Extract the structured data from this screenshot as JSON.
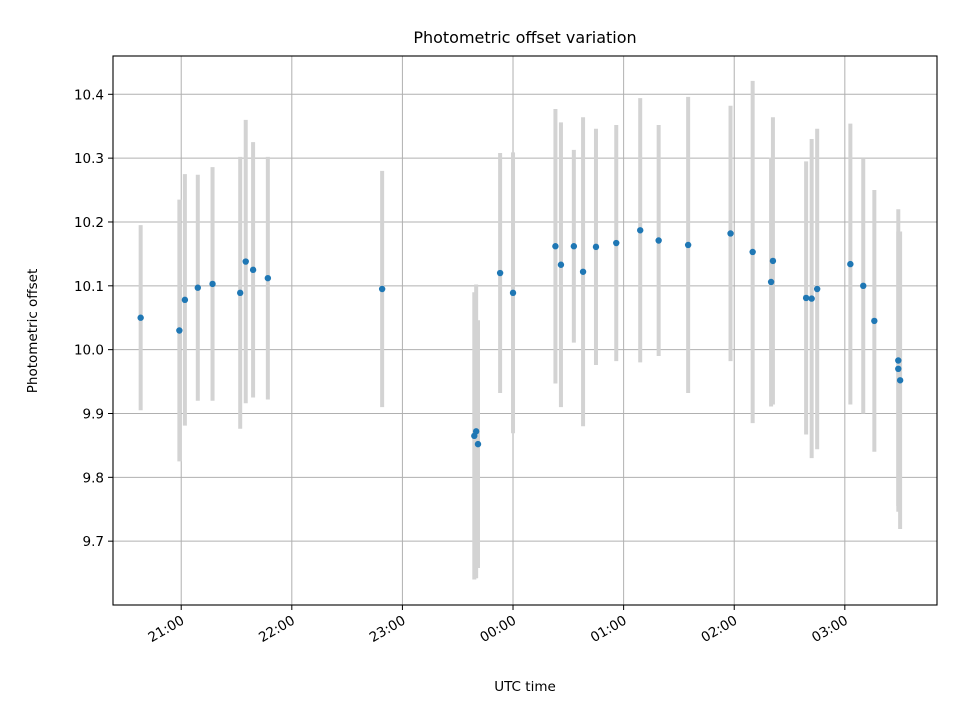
{
  "chart_data": {
    "type": "scatter",
    "title": "Photometric offset variation",
    "xlabel": "UTC time",
    "ylabel": "Photometric offset",
    "x_tick_labels": [
      "21:00",
      "22:00",
      "23:00",
      "00:00",
      "01:00",
      "02:00",
      "03:00"
    ],
    "x_tick_times": [
      "21:00",
      "22:00",
      "23:00",
      "00:00",
      "01:00",
      "02:00",
      "03:00"
    ],
    "y_tick_labels": [
      "9.7",
      "9.8",
      "9.9",
      "10.0",
      "10.1",
      "10.2",
      "10.3",
      "10.4"
    ],
    "y_ticks": [
      9.7,
      9.8,
      9.9,
      10.0,
      10.1,
      10.2,
      10.3,
      10.4
    ],
    "xlim": [
      "20:23",
      "03:50"
    ],
    "ylim": [
      9.6,
      10.46
    ],
    "grid": true,
    "legend": "none",
    "point_color": "#1f77b4",
    "errorbar_color": "#d3d3d3",
    "points": [
      {
        "t": "20:38",
        "y": 10.05,
        "err": 0.145
      },
      {
        "t": "20:59",
        "y": 10.03,
        "err": 0.205
      },
      {
        "t": "21:02",
        "y": 10.078,
        "err": 0.197
      },
      {
        "t": "21:09",
        "y": 10.097,
        "err": 0.177
      },
      {
        "t": "21:17",
        "y": 10.103,
        "err": 0.183
      },
      {
        "t": "21:32",
        "y": 10.089,
        "err": 0.213
      },
      {
        "t": "21:35",
        "y": 10.138,
        "err": 0.222
      },
      {
        "t": "21:39",
        "y": 10.125,
        "err": 0.2
      },
      {
        "t": "21:47",
        "y": 10.112,
        "err": 0.19
      },
      {
        "t": "22:49",
        "y": 10.095,
        "err": 0.185
      },
      {
        "t": "23:39",
        "y": 9.865,
        "err": 0.225
      },
      {
        "t": "23:40",
        "y": 9.872,
        "err": 0.23
      },
      {
        "t": "23:41",
        "y": 9.852,
        "err": 0.194
      },
      {
        "t": "23:53",
        "y": 10.12,
        "err": 0.188
      },
      {
        "t": "00:00",
        "y": 10.089,
        "err": 0.22
      },
      {
        "t": "00:23",
        "y": 10.162,
        "err": 0.215
      },
      {
        "t": "00:26",
        "y": 10.133,
        "err": 0.223
      },
      {
        "t": "00:33",
        "y": 10.162,
        "err": 0.151
      },
      {
        "t": "00:38",
        "y": 10.122,
        "err": 0.242
      },
      {
        "t": "00:45",
        "y": 10.161,
        "err": 0.185
      },
      {
        "t": "00:56",
        "y": 10.167,
        "err": 0.185
      },
      {
        "t": "01:09",
        "y": 10.187,
        "err": 0.207
      },
      {
        "t": "01:19",
        "y": 10.171,
        "err": 0.181
      },
      {
        "t": "01:35",
        "y": 10.164,
        "err": 0.232
      },
      {
        "t": "01:58",
        "y": 10.182,
        "err": 0.2
      },
      {
        "t": "02:10",
        "y": 10.153,
        "err": 0.268
      },
      {
        "t": "02:20",
        "y": 10.106,
        "err": 0.195
      },
      {
        "t": "02:21",
        "y": 10.139,
        "err": 0.225
      },
      {
        "t": "02:39",
        "y": 10.081,
        "err": 0.214
      },
      {
        "t": "02:42",
        "y": 10.08,
        "err": 0.25
      },
      {
        "t": "02:45",
        "y": 10.095,
        "err": 0.251
      },
      {
        "t": "03:03",
        "y": 10.134,
        "err": 0.22
      },
      {
        "t": "03:10",
        "y": 10.1,
        "err": 0.2
      },
      {
        "t": "03:16",
        "y": 10.045,
        "err": 0.205
      },
      {
        "t": "03:29",
        "y": 9.983,
        "err": 0.237
      },
      {
        "t": "03:29",
        "y": 9.97,
        "err": 0.215
      },
      {
        "t": "03:30",
        "y": 9.952,
        "err": 0.233
      }
    ]
  }
}
